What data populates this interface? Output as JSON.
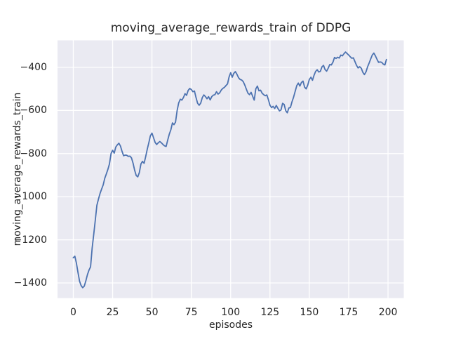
{
  "chart_data": {
    "type": "line",
    "title": "moving_average_rewards_train of DDPG",
    "xlabel": "episodes",
    "ylabel": "moving_average_rewards_train",
    "grid": true,
    "legend": "none",
    "plot_bg_color": "#eaeaf2",
    "grid_color": "#ffffff",
    "text_color": "#262626",
    "line_color": "#4c72b0",
    "xlim": [
      -10,
      210
    ],
    "ylim": [
      -1470,
      -275
    ],
    "xticks": {
      "values": [
        0,
        25,
        50,
        75,
        100,
        125,
        150,
        175,
        200
      ],
      "labels": [
        "0",
        "25",
        "50",
        "75",
        "100",
        "125",
        "150",
        "175",
        "200"
      ]
    },
    "yticks": {
      "values": [
        -400,
        -600,
        -800,
        -1000,
        -1200,
        -1400
      ],
      "labels": [
        "−400",
        "−600",
        "−800",
        "−1000",
        "−1200",
        "−1400"
      ]
    },
    "x_start": 0,
    "x_step": 1,
    "series": [
      {
        "name": "moving_average_rewards_train",
        "color": "#4c72b0",
        "values": [
          -1283,
          -1276,
          -1308,
          -1352,
          -1392,
          -1412,
          -1422,
          -1415,
          -1390,
          -1362,
          -1340,
          -1325,
          -1240,
          -1175,
          -1110,
          -1040,
          -1012,
          -985,
          -965,
          -945,
          -915,
          -895,
          -873,
          -848,
          -800,
          -785,
          -798,
          -770,
          -760,
          -752,
          -765,
          -790,
          -810,
          -807,
          -808,
          -813,
          -812,
          -820,
          -845,
          -877,
          -902,
          -908,
          -888,
          -848,
          -836,
          -845,
          -815,
          -780,
          -750,
          -718,
          -705,
          -726,
          -748,
          -758,
          -750,
          -744,
          -750,
          -758,
          -764,
          -767,
          -738,
          -710,
          -690,
          -658,
          -666,
          -654,
          -600,
          -565,
          -548,
          -552,
          -540,
          -522,
          -530,
          -507,
          -498,
          -503,
          -513,
          -510,
          -540,
          -566,
          -576,
          -566,
          -540,
          -528,
          -536,
          -546,
          -536,
          -551,
          -536,
          -529,
          -527,
          -513,
          -524,
          -519,
          -506,
          -498,
          -493,
          -485,
          -477,
          -445,
          -425,
          -446,
          -428,
          -420,
          -432,
          -448,
          -456,
          -459,
          -466,
          -482,
          -502,
          -520,
          -527,
          -516,
          -535,
          -552,
          -500,
          -487,
          -509,
          -506,
          -520,
          -527,
          -532,
          -528,
          -550,
          -576,
          -587,
          -581,
          -591,
          -577,
          -590,
          -602,
          -598,
          -567,
          -572,
          -601,
          -611,
          -589,
          -586,
          -560,
          -538,
          -512,
          -485,
          -473,
          -487,
          -470,
          -464,
          -492,
          -500,
          -482,
          -456,
          -446,
          -460,
          -437,
          -419,
          -411,
          -422,
          -419,
          -398,
          -391,
          -410,
          -418,
          -404,
          -387,
          -389,
          -376,
          -354,
          -359,
          -353,
          -357,
          -343,
          -347,
          -337,
          -329,
          -336,
          -343,
          -351,
          -358,
          -356,
          -374,
          -391,
          -403,
          -397,
          -404,
          -423,
          -434,
          -421,
          -398,
          -380,
          -361,
          -343,
          -334,
          -347,
          -363,
          -377,
          -375,
          -377,
          -385,
          -389,
          -364
        ]
      }
    ]
  }
}
